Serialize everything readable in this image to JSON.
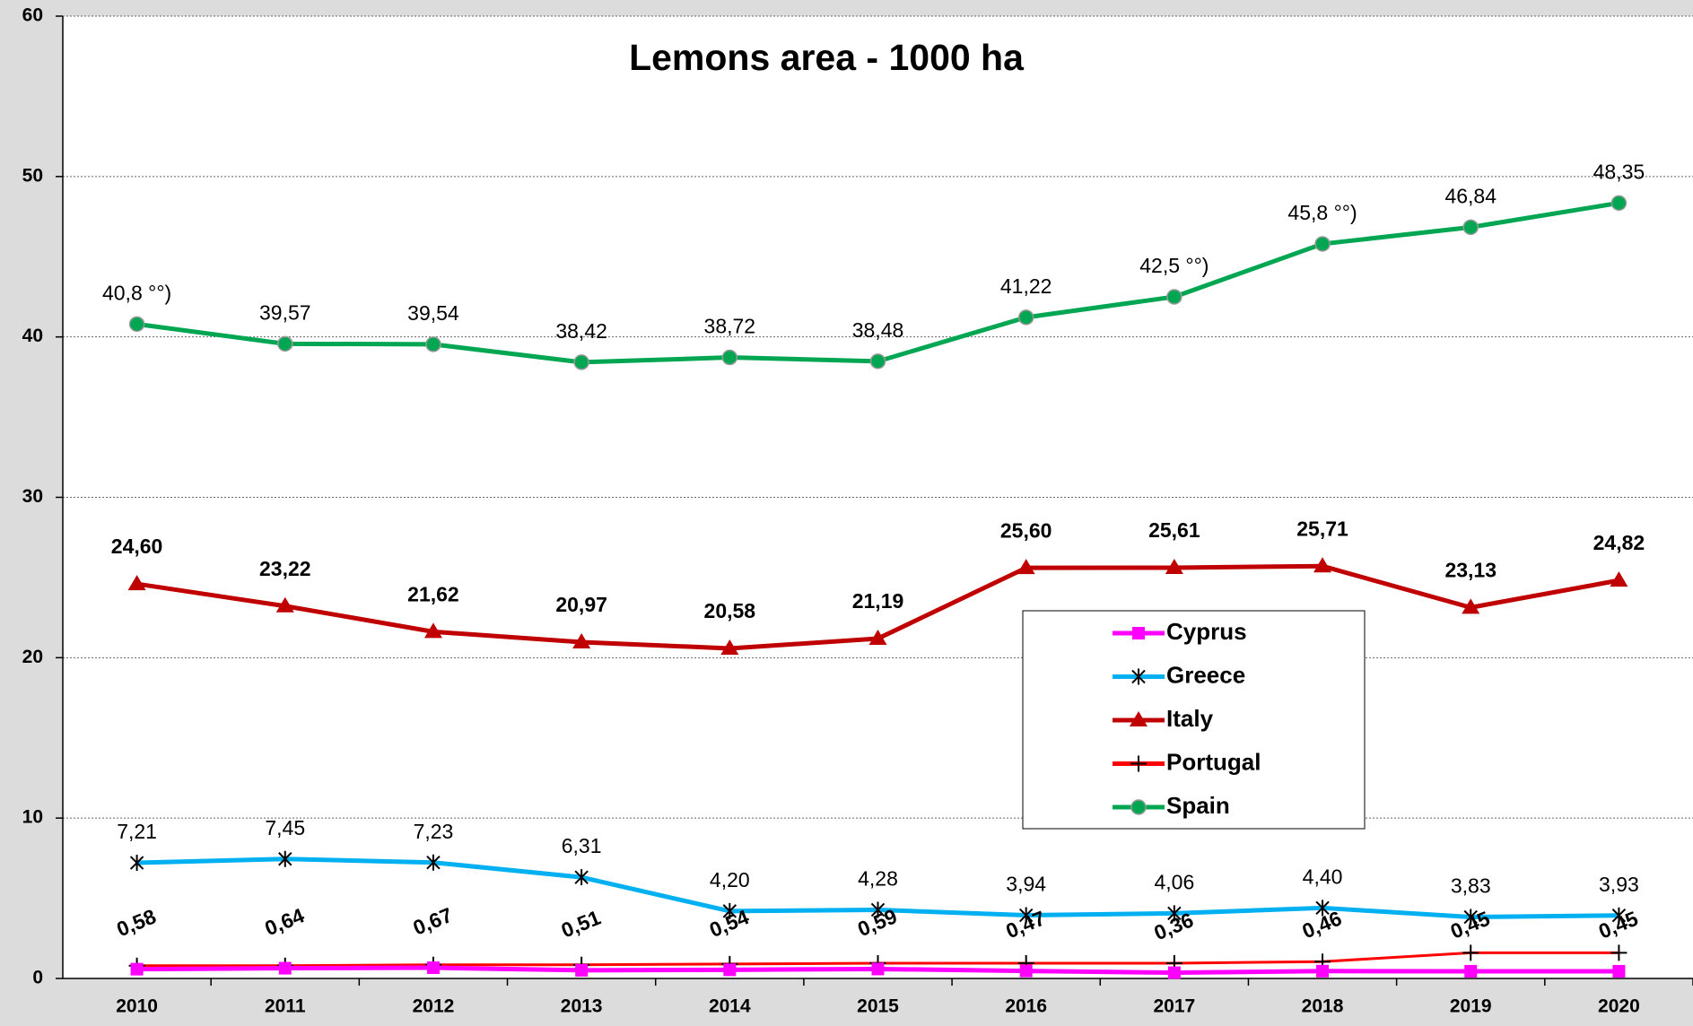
{
  "chart_data": {
    "type": "line",
    "title": "Lemons area - 1000 ha",
    "categories": [
      "2010",
      "2011",
      "2012",
      "2013",
      "2014",
      "2015",
      "2016",
      "2017",
      "2018",
      "2019",
      "2020"
    ],
    "ylim": [
      0,
      60
    ],
    "yticks": [
      0,
      10,
      20,
      30,
      40,
      50,
      60
    ],
    "grid": true,
    "legend": "center-right",
    "series": [
      {
        "name": "Cyprus",
        "color": "#ff00ff",
        "marker": "square",
        "values": [
          0.58,
          0.64,
          0.67,
          0.51,
          0.54,
          0.59,
          0.47,
          0.36,
          0.46,
          0.45,
          0.45
        ],
        "value_labels": [
          "0,58",
          "0,64",
          "0,67",
          "0,51",
          "0,54",
          "0,59",
          "0,47",
          "0,36",
          "0,46",
          "0,45",
          "0,45"
        ]
      },
      {
        "name": "Greece",
        "color": "#00b0f0",
        "marker": "asterisk",
        "values": [
          7.21,
          7.45,
          7.23,
          6.31,
          4.2,
          4.28,
          3.94,
          4.06,
          4.4,
          3.83,
          3.93
        ],
        "value_labels": [
          "7,21",
          "7,45",
          "7,23",
          "6,31",
          "4,20",
          "4,28",
          "3,94",
          "4,06",
          "4,40",
          "3,83",
          "3,93"
        ]
      },
      {
        "name": "Italy",
        "color": "#c00000",
        "marker": "triangle",
        "values": [
          24.6,
          23.22,
          21.62,
          20.97,
          20.58,
          21.19,
          25.6,
          25.61,
          25.71,
          23.13,
          24.82
        ],
        "value_labels": [
          "24,60",
          "23,22",
          "21,62",
          "20,97",
          "20,58",
          "21,19",
          "25,60",
          "25,61",
          "25,71",
          "23,13",
          "24,82"
        ]
      },
      {
        "name": "Portugal",
        "color": "#ff0000",
        "marker": "plus",
        "values": [
          0.8,
          0.8,
          0.85,
          0.85,
          0.9,
          0.95,
          0.95,
          0.95,
          1.05,
          1.6,
          1.6
        ]
      },
      {
        "name": "Spain",
        "color": "#00a651",
        "marker": "circle",
        "values": [
          40.8,
          39.57,
          39.54,
          38.42,
          38.72,
          38.48,
          41.22,
          42.5,
          45.8,
          46.84,
          48.35
        ],
        "value_labels": [
          "40,8 °°)",
          "39,57",
          "39,54",
          "38,42",
          "38,72",
          "38,48",
          "41,22",
          "42,5 °°)",
          "45,8 °°)",
          "46,84",
          "48,35"
        ]
      }
    ]
  }
}
